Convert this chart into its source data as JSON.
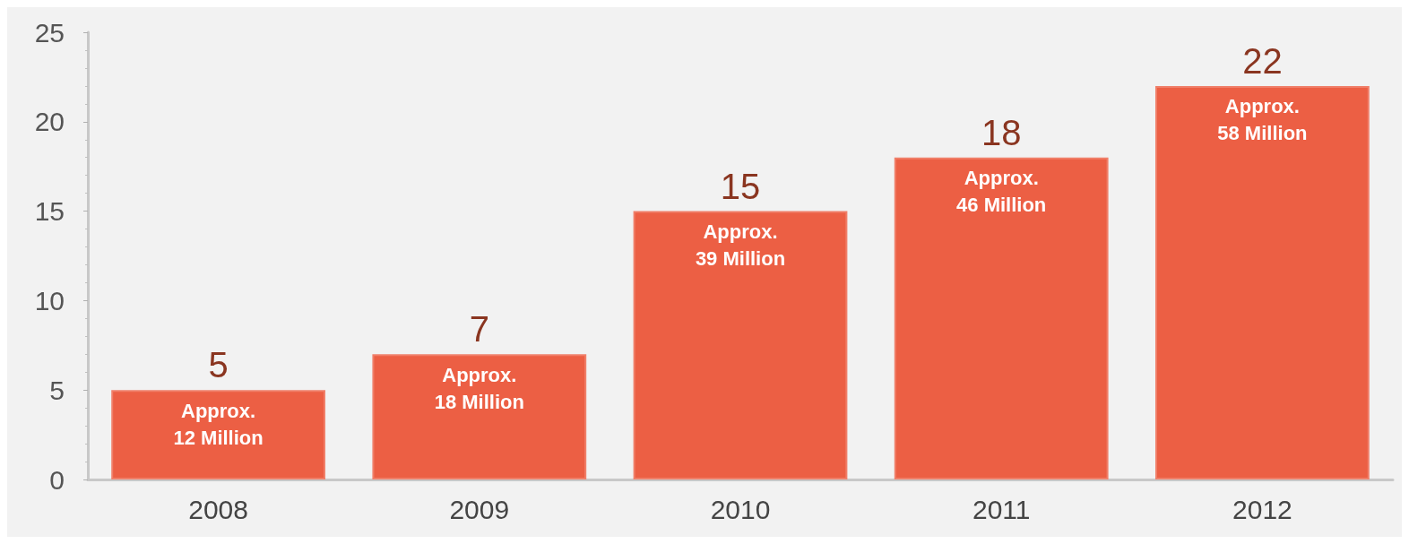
{
  "chart_data": {
    "type": "bar",
    "categories": [
      "2008",
      "2009",
      "2010",
      "2011",
      "2012"
    ],
    "values": [
      5,
      7,
      15,
      18,
      22
    ],
    "color": "#ec5f44",
    "ylim": [
      0,
      25
    ],
    "yticks": [
      0,
      5,
      10,
      15,
      20,
      25
    ],
    "data_labels": true,
    "grid": false,
    "annotations": [
      {
        "text": "Approx.\n12 Million",
        "x": "2008",
        "y": 5
      },
      {
        "text": "Approx.\n18 Million",
        "x": "2009",
        "y": 7
      },
      {
        "text": "Approx.\n39 Million",
        "x": "2010",
        "y": 15
      },
      {
        "text": "Approx.\n46 Million",
        "x": "2011",
        "y": 18
      },
      {
        "text": "Approx.\n58 Million",
        "x": "2012",
        "y": 22
      }
    ]
  }
}
